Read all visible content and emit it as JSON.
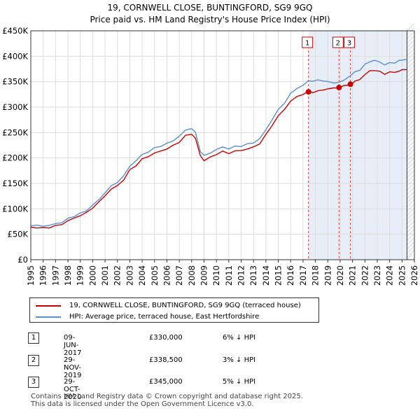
{
  "title_line1": "19, CORNWELL CLOSE, BUNTINGFORD, SG9 9GQ",
  "title_line2": "Price paid vs. HM Land Registry's House Price Index (HPI)",
  "chart_data": {
    "type": "line",
    "title": "Price paid vs. HM Land Registry's House Price Index (HPI)",
    "xlabel": "",
    "ylabel": "",
    "xlim": [
      1995,
      2026
    ],
    "ylim": [
      0,
      450000
    ],
    "x_ticks": [
      "1995",
      "1996",
      "1997",
      "1998",
      "1999",
      "2000",
      "2001",
      "2002",
      "2003",
      "2004",
      "2005",
      "2006",
      "2007",
      "2008",
      "2009",
      "2010",
      "2011",
      "2012",
      "2013",
      "2014",
      "2015",
      "2016",
      "2017",
      "2018",
      "2019",
      "2020",
      "2021",
      "2022",
      "2023",
      "2024",
      "2025",
      "2026"
    ],
    "y_ticks": [
      {
        "value": 0,
        "label": "£0"
      },
      {
        "value": 50000,
        "label": "£50K"
      },
      {
        "value": 100000,
        "label": "£100K"
      },
      {
        "value": 150000,
        "label": "£150K"
      },
      {
        "value": 200000,
        "label": "£200K"
      },
      {
        "value": 250000,
        "label": "£250K"
      },
      {
        "value": 300000,
        "label": "£300K"
      },
      {
        "value": 350000,
        "label": "£350K"
      },
      {
        "value": 400000,
        "label": "£400K"
      },
      {
        "value": 450000,
        "label": "£450K"
      }
    ],
    "grid": true,
    "shaded_range": [
      2017.44,
      2025.4
    ],
    "series": [
      {
        "name": "19, CORNWELL CLOSE, BUNTINGFORD, SG9 9GQ (terraced house)",
        "color": "#cc0000",
        "x": [
          1995,
          1995.5,
          1996,
          1996.5,
          1997,
          1997.5,
          1998,
          1998.5,
          1999,
          1999.5,
          2000,
          2000.5,
          2001,
          2001.5,
          2002,
          2002.5,
          2003,
          2003.5,
          2004,
          2004.5,
          2005,
          2005.5,
          2006,
          2006.5,
          2007,
          2007.5,
          2008,
          2008.3,
          2008.7,
          2009,
          2009.5,
          2010,
          2010.5,
          2011,
          2011.5,
          2012,
          2012.5,
          2013,
          2013.5,
          2014,
          2014.5,
          2015,
          2015.5,
          2016,
          2016.5,
          2017,
          2017.44,
          2017.8,
          2018.2,
          2018.6,
          2019,
          2019.5,
          2019.91,
          2020.3,
          2020.83,
          2021.2,
          2021.6,
          2022,
          2022.4,
          2022.8,
          2023.2,
          2023.6,
          2024,
          2024.4,
          2024.8,
          2025,
          2025.4
        ],
        "y": [
          64000,
          63000,
          62000,
          64000,
          66000,
          70000,
          76000,
          82000,
          87000,
          92000,
          103000,
          112000,
          127000,
          138000,
          146000,
          157000,
          176000,
          186000,
          197000,
          204000,
          209000,
          214000,
          218000,
          224000,
          232000,
          243000,
          248000,
          238000,
          205000,
          195000,
          201000,
          208000,
          212000,
          210000,
          213000,
          215000,
          218000,
          221000,
          229000,
          245000,
          265000,
          282000,
          296000,
          312000,
          320000,
          326000,
          330000,
          330000,
          331000,
          334000,
          336000,
          337000,
          338500,
          341000,
          345000,
          350000,
          355000,
          364000,
          371000,
          373000,
          369000,
          366000,
          368000,
          369000,
          371000,
          373000,
          375000
        ]
      },
      {
        "name": "HPI: Average price, terraced house, East Hertfordshire",
        "color": "#5a8fd0",
        "x": [
          1995,
          1995.5,
          1996,
          1996.5,
          1997,
          1997.5,
          1998,
          1998.5,
          1999,
          1999.5,
          2000,
          2000.5,
          2001,
          2001.5,
          2002,
          2002.5,
          2003,
          2003.5,
          2004,
          2004.5,
          2005,
          2005.5,
          2006,
          2006.5,
          2007,
          2007.5,
          2008,
          2008.3,
          2008.7,
          2009,
          2009.5,
          2010,
          2010.5,
          2011,
          2011.5,
          2012,
          2012.5,
          2013,
          2013.5,
          2014,
          2014.5,
          2015,
          2015.5,
          2016,
          2016.5,
          2017,
          2017.44,
          2017.8,
          2018.2,
          2018.6,
          2019,
          2019.5,
          2019.91,
          2020.3,
          2020.83,
          2021.2,
          2021.6,
          2022,
          2022.4,
          2022.8,
          2023.2,
          2023.6,
          2024,
          2024.4,
          2024.8,
          2025,
          2025.4
        ],
        "y": [
          68000,
          67000,
          66000,
          68000,
          70000,
          74000,
          80000,
          86000,
          91000,
          96000,
          108000,
          117000,
          133000,
          144000,
          153000,
          164000,
          184000,
          195000,
          206000,
          213000,
          219000,
          224000,
          228000,
          234000,
          243000,
          254000,
          259000,
          249000,
          214000,
          204000,
          210000,
          217000,
          221000,
          219000,
          222000,
          224000,
          227000,
          230000,
          238000,
          255000,
          276000,
          294000,
          309000,
          326000,
          337000,
          343000,
          351000,
          352000,
          352000,
          353000,
          349000,
          348000,
          349000,
          352000,
          363000,
          368000,
          374000,
          383000,
          390000,
          392000,
          388000,
          384000,
          386000,
          388000,
          391000,
          393000,
          394000
        ]
      }
    ],
    "sales": [
      {
        "label": "1",
        "x": 2017.44,
        "value": 330000
      },
      {
        "label": "2",
        "x": 2019.91,
        "value": 338500
      },
      {
        "label": "3",
        "x": 2020.83,
        "value": 345000
      }
    ]
  },
  "legend": {
    "items": [
      {
        "label": "19, CORNWELL CLOSE, BUNTINGFORD, SG9 9GQ (terraced house)",
        "color": "#cc0000"
      },
      {
        "label": "HPI: Average price, terraced house, East Hertfordshire",
        "color": "#5a8fd0"
      }
    ]
  },
  "table": {
    "rows": [
      {
        "num": "1",
        "date": "09-JUN-2017",
        "price": "£330,000",
        "hpi": "6% ↓ HPI"
      },
      {
        "num": "2",
        "date": "29-NOV-2019",
        "price": "£338,500",
        "hpi": "3% ↓ HPI"
      },
      {
        "num": "3",
        "date": "29-OCT-2020",
        "price": "£345,000",
        "hpi": "5% ↓ HPI"
      }
    ]
  },
  "footer": {
    "line1": "Contains HM Land Registry data © Crown copyright and database right 2025.",
    "line2": "This data is licensed under the Open Government Licence v3.0."
  }
}
